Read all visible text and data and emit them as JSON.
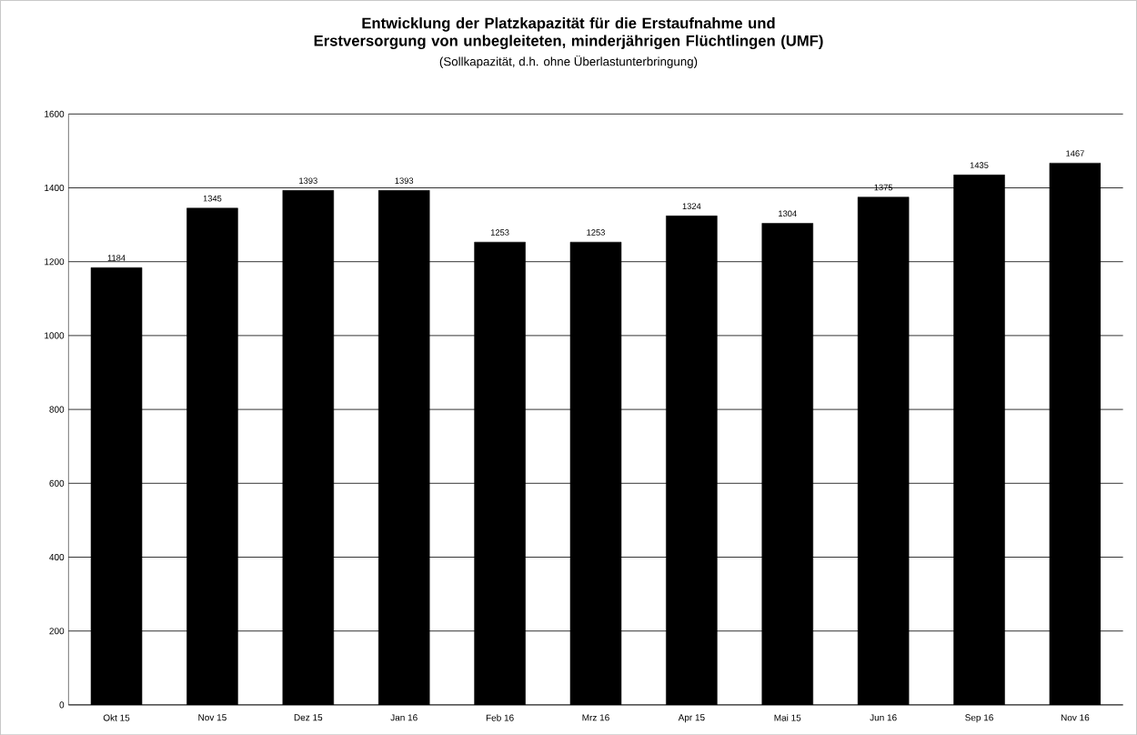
{
  "chart_data": {
    "type": "bar",
    "title": "Entwicklung der Platzkapazität für die Erstaufnahme und Erstversorgung von unbegleiteten, minderjährigen Flüchtlingen (UMF)",
    "subtitle": "(Sollkapazität, d.h. ohne Überlastunterbringung)",
    "categories": [
      "Okt 15",
      "Nov 15",
      "Dez 15",
      "Jan 16",
      "Feb 16",
      "Mrz 16",
      "Apr 15",
      "Mai 15",
      "Jun 16",
      "Sep 16",
      "Nov 16"
    ],
    "values": [
      1184,
      1345,
      1393,
      1393,
      1253,
      1253,
      1324,
      1304,
      1375,
      1435,
      1467
    ],
    "color": "#000000",
    "data_labels": true,
    "grid": "y",
    "ylim": [
      0,
      1600
    ],
    "yticks": [
      0,
      200,
      400,
      600,
      800,
      1000,
      1200,
      1400,
      1600
    ]
  }
}
